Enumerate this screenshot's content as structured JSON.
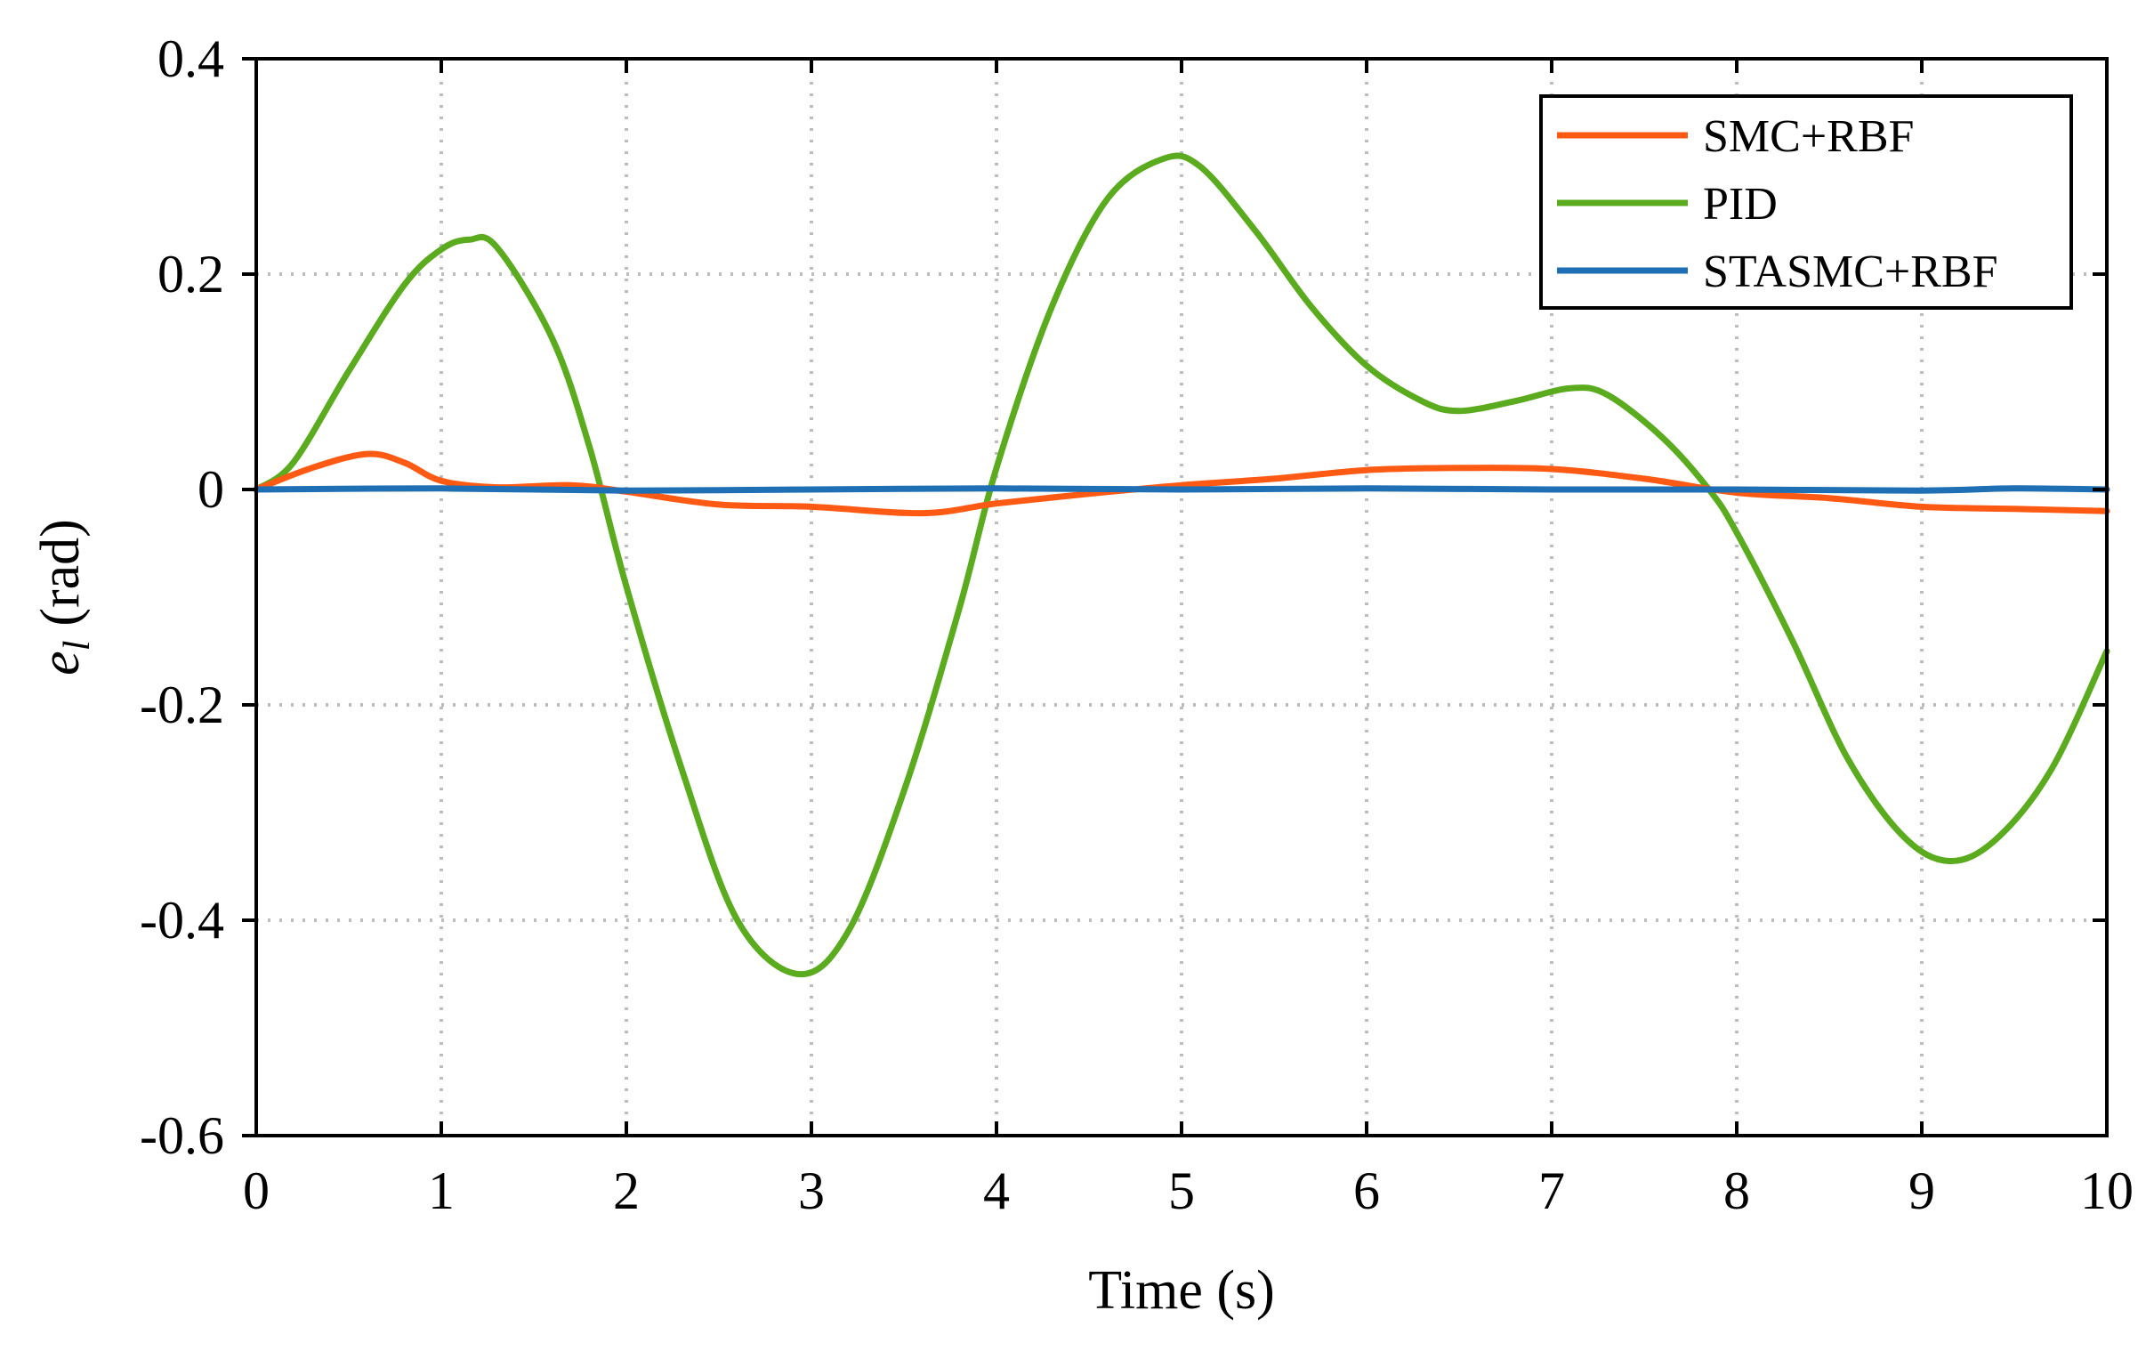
{
  "chart_data": {
    "type": "line",
    "title": "",
    "xlabel": "Time (s)",
    "ylabel": {
      "symbol": "e",
      "subscript": "l",
      "unit": "(rad)"
    },
    "xlim": [
      0,
      10
    ],
    "ylim": [
      -0.6,
      0.4
    ],
    "xticks": [
      0,
      1,
      2,
      3,
      4,
      5,
      6,
      7,
      8,
      9,
      10
    ],
    "xtick_labels": [
      "0",
      "1",
      "2",
      "3",
      "4",
      "5",
      "6",
      "7",
      "8",
      "9",
      "10"
    ],
    "yticks": [
      0.4,
      0.2,
      0,
      -0.2,
      -0.4,
      -0.6
    ],
    "ytick_labels": [
      "0.4",
      "0.2",
      "0",
      "-0.2",
      "-0.4",
      "-0.6"
    ],
    "grid": "dotted",
    "legend_position": "top-right",
    "series": [
      {
        "name": "SMC+RBF",
        "color": "#ff5a14",
        "points": [
          [
            0,
            0
          ],
          [
            0.3,
            0.02
          ],
          [
            0.6,
            0.033
          ],
          [
            0.8,
            0.025
          ],
          [
            1.0,
            0.008
          ],
          [
            1.3,
            0.002
          ],
          [
            1.7,
            0.004
          ],
          [
            2.0,
            -0.002
          ],
          [
            2.5,
            -0.014
          ],
          [
            3.0,
            -0.016
          ],
          [
            3.6,
            -0.022
          ],
          [
            4.0,
            -0.013
          ],
          [
            4.5,
            -0.004
          ],
          [
            5.0,
            0.004
          ],
          [
            5.5,
            0.01
          ],
          [
            6.0,
            0.018
          ],
          [
            6.5,
            0.02
          ],
          [
            7.0,
            0.019
          ],
          [
            7.5,
            0.01
          ],
          [
            8.0,
            -0.003
          ],
          [
            8.5,
            -0.008
          ],
          [
            9.0,
            -0.016
          ],
          [
            9.5,
            -0.018
          ],
          [
            10.0,
            -0.02
          ]
        ]
      },
      {
        "name": "PID",
        "color": "#5aab1e",
        "points": [
          [
            0,
            0
          ],
          [
            0.2,
            0.025
          ],
          [
            0.5,
            0.11
          ],
          [
            0.8,
            0.19
          ],
          [
            1.0,
            0.223
          ],
          [
            1.15,
            0.232
          ],
          [
            1.3,
            0.225
          ],
          [
            1.6,
            0.14
          ],
          [
            1.8,
            0.04
          ],
          [
            2.0,
            -0.09
          ],
          [
            2.3,
            -0.26
          ],
          [
            2.6,
            -0.4
          ],
          [
            2.93,
            -0.45
          ],
          [
            3.2,
            -0.41
          ],
          [
            3.5,
            -0.28
          ],
          [
            3.8,
            -0.11
          ],
          [
            4.0,
            0.02
          ],
          [
            4.3,
            0.17
          ],
          [
            4.6,
            0.27
          ],
          [
            4.9,
            0.307
          ],
          [
            5.1,
            0.3
          ],
          [
            5.4,
            0.24
          ],
          [
            5.7,
            0.17
          ],
          [
            6.0,
            0.115
          ],
          [
            6.3,
            0.082
          ],
          [
            6.5,
            0.073
          ],
          [
            6.8,
            0.082
          ],
          [
            7.1,
            0.094
          ],
          [
            7.3,
            0.088
          ],
          [
            7.6,
            0.048
          ],
          [
            7.85,
            0.0
          ],
          [
            8.0,
            -0.04
          ],
          [
            8.3,
            -0.14
          ],
          [
            8.6,
            -0.25
          ],
          [
            8.9,
            -0.322
          ],
          [
            9.15,
            -0.345
          ],
          [
            9.4,
            -0.325
          ],
          [
            9.7,
            -0.26
          ],
          [
            10.0,
            -0.15
          ]
        ]
      },
      {
        "name": "STASMC+RBF",
        "color": "#1f6fb5",
        "points": [
          [
            0,
            0
          ],
          [
            1,
            0.001
          ],
          [
            2,
            -0.001
          ],
          [
            3,
            0.0
          ],
          [
            4,
            0.001
          ],
          [
            5,
            0.0
          ],
          [
            6,
            0.001
          ],
          [
            7,
            0.0
          ],
          [
            8,
            0.0
          ],
          [
            9,
            -0.001
          ],
          [
            9.5,
            0.001
          ],
          [
            10,
            0.0
          ]
        ]
      }
    ]
  }
}
